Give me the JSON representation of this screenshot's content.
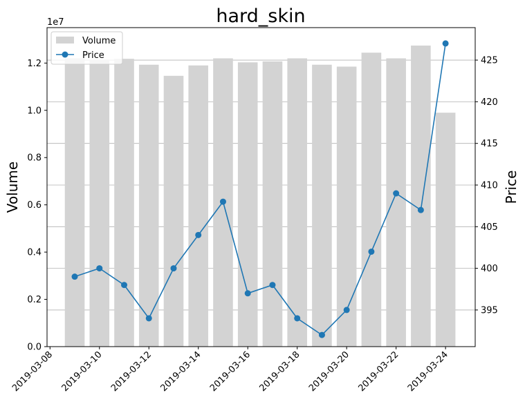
{
  "chart_data": {
    "type": "bar+line",
    "title": "hard_skin",
    "y_left_label": "Volume",
    "y_right_label": "Price",
    "y_left_offset_text": "1e7",
    "y_left_scale": 10000000,
    "y_left_lim": [
      0,
      13500000
    ],
    "y_left_ticks": [
      0,
      2000000,
      4000000,
      6000000,
      8000000,
      10000000,
      12000000
    ],
    "y_left_tick_labels": [
      "0.0",
      "0.2",
      "0.4",
      "0.6",
      "0.8",
      "1.0",
      "1.2"
    ],
    "y_right_lim": [
      390.6,
      428.9
    ],
    "y_right_ticks": [
      395,
      400,
      405,
      410,
      415,
      420,
      425
    ],
    "y_right_tick_labels": [
      "395",
      "400",
      "405",
      "410",
      "415",
      "420",
      "425"
    ],
    "x_tick_labels": [
      "2019-03-08",
      "2019-03-10",
      "2019-03-12",
      "2019-03-14",
      "2019-03-16",
      "2019-03-18",
      "2019-03-20",
      "2019-03-22",
      "2019-03-24"
    ],
    "x_tick_dates": [
      "2019-03-08",
      "2019-03-10",
      "2019-03-12",
      "2019-03-14",
      "2019-03-16",
      "2019-03-18",
      "2019-03-20",
      "2019-03-22",
      "2019-03-24"
    ],
    "x_range_dates": [
      "2019-03-08",
      "2019-03-24"
    ],
    "dates": [
      "2019-03-09",
      "2019-03-10",
      "2019-03-11",
      "2019-03-12",
      "2019-03-13",
      "2019-03-14",
      "2019-03-15",
      "2019-03-16",
      "2019-03-17",
      "2019-03-18",
      "2019-03-19",
      "2019-03-20",
      "2019-03-21",
      "2019-03-22",
      "2019-03-23",
      "2019-03-24"
    ],
    "series": [
      {
        "name": "Volume",
        "kind": "bar",
        "axis": "left",
        "color": "#d3d3d3",
        "values": [
          12200000,
          12100000,
          12180000,
          11930000,
          11460000,
          11900000,
          12200000,
          12030000,
          12070000,
          12200000,
          11930000,
          11850000,
          12440000,
          12200000,
          12740000,
          9900000
        ]
      },
      {
        "name": "Price",
        "kind": "line",
        "axis": "right",
        "color": "#1f77b4",
        "values": [
          399,
          400,
          398,
          394,
          400,
          404,
          408,
          397,
          398,
          394,
          392,
          395,
          402,
          409,
          407,
          427
        ]
      }
    ],
    "grid": "horizontal, right axis",
    "legend_position": "upper left"
  }
}
